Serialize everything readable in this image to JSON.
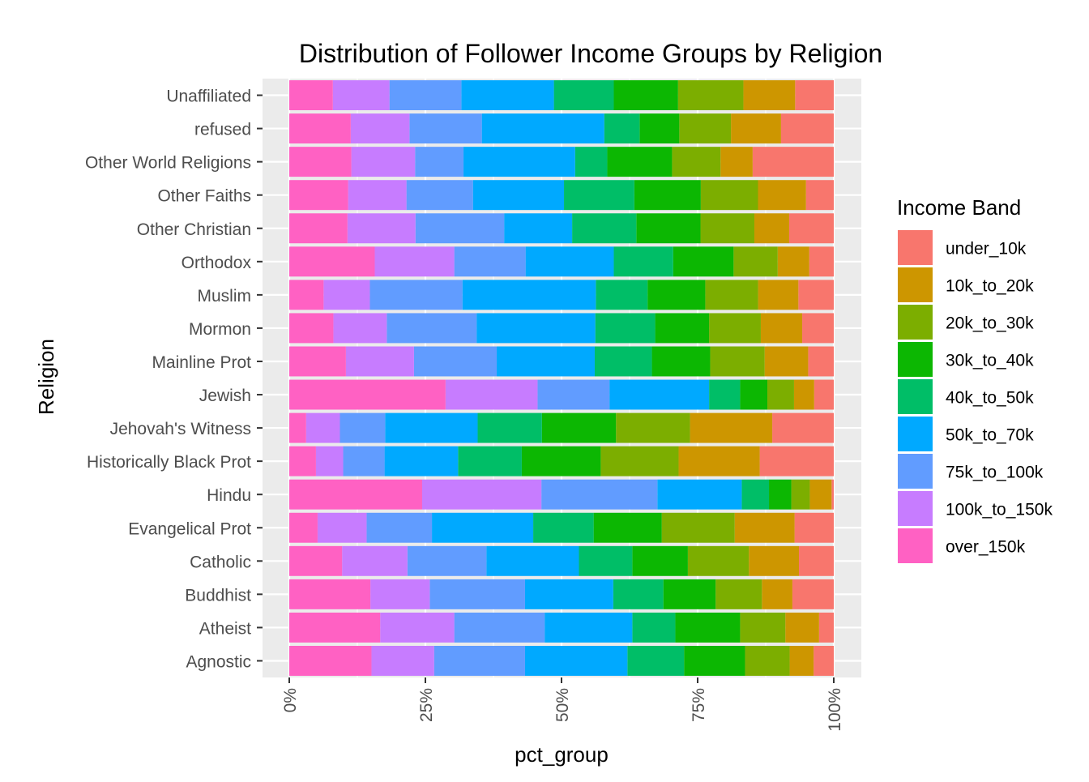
{
  "chart_data": {
    "type": "bar",
    "orientation": "horizontal",
    "stacked": true,
    "normalized": true,
    "title": "Distribution of Follower Income Groups by Religion",
    "xlabel": "pct_group",
    "ylabel": "Religion",
    "xlim": [
      0,
      1
    ],
    "x_ticks": [
      0,
      0.25,
      0.5,
      0.75,
      1.0
    ],
    "x_tick_labels": [
      "0%",
      "25%",
      "50%",
      "75%",
      "100%"
    ],
    "grid": true,
    "legend_position": "right",
    "legend_title": "Income Band",
    "categories": [
      "Agnostic",
      "Atheist",
      "Buddhist",
      "Catholic",
      "Evangelical Prot",
      "Hindu",
      "Historically Black Prot",
      "Jehovah's Witness",
      "Jewish",
      "Mainline Prot",
      "Mormon",
      "Muslim",
      "Orthodox",
      "Other Christian",
      "Other Faiths",
      "Other World Religions",
      "refused",
      "Unaffiliated"
    ],
    "series": [
      {
        "name": "under_10k",
        "color": "#F8766D",
        "values": [
          0.037,
          0.027,
          0.076,
          0.064,
          0.072,
          0.004,
          0.136,
          0.113,
          0.036,
          0.047,
          0.058,
          0.065,
          0.045,
          0.082,
          0.051,
          0.149,
          0.097,
          0.071
        ]
      },
      {
        "name": "10k_to_20k",
        "color": "#CD9600",
        "values": [
          0.044,
          0.062,
          0.056,
          0.092,
          0.11,
          0.04,
          0.149,
          0.151,
          0.037,
          0.08,
          0.076,
          0.074,
          0.058,
          0.064,
          0.088,
          0.059,
          0.092,
          0.095
        ]
      },
      {
        "name": "20k_to_30k",
        "color": "#7CAE00",
        "values": [
          0.082,
          0.083,
          0.085,
          0.112,
          0.134,
          0.034,
          0.143,
          0.136,
          0.049,
          0.1,
          0.095,
          0.097,
          0.081,
          0.099,
          0.105,
          0.089,
          0.095,
          0.12
        ]
      },
      {
        "name": "30k_to_40k",
        "color": "#0CB702",
        "values": [
          0.112,
          0.119,
          0.096,
          0.102,
          0.125,
          0.041,
          0.145,
          0.136,
          0.05,
          0.107,
          0.099,
          0.106,
          0.111,
          0.118,
          0.122,
          0.119,
          0.073,
          0.118
        ]
      },
      {
        "name": "40k_to_50k",
        "color": "#00BE67",
        "values": [
          0.104,
          0.079,
          0.092,
          0.098,
          0.111,
          0.05,
          0.117,
          0.118,
          0.057,
          0.105,
          0.11,
          0.095,
          0.109,
          0.118,
          0.129,
          0.059,
          0.065,
          0.11
        ]
      },
      {
        "name": "50k_to_70k",
        "color": "#00A9FF",
        "values": [
          0.188,
          0.161,
          0.162,
          0.17,
          0.186,
          0.155,
          0.135,
          0.17,
          0.183,
          0.18,
          0.218,
          0.245,
          0.162,
          0.125,
          0.167,
          0.205,
          0.225,
          0.17
        ]
      },
      {
        "name": "75k_to_100k",
        "color": "#619CFF",
        "values": [
          0.167,
          0.166,
          0.175,
          0.145,
          0.12,
          0.213,
          0.076,
          0.083,
          0.132,
          0.152,
          0.165,
          0.17,
          0.131,
          0.163,
          0.122,
          0.089,
          0.133,
          0.132
        ]
      },
      {
        "name": "100k_to_150k",
        "color": "#C77CFF",
        "values": [
          0.115,
          0.136,
          0.109,
          0.12,
          0.09,
          0.219,
          0.05,
          0.062,
          0.169,
          0.125,
          0.098,
          0.085,
          0.146,
          0.125,
          0.107,
          0.117,
          0.108,
          0.104
        ]
      },
      {
        "name": "over_150k",
        "color": "#FF61C3",
        "values": [
          0.151,
          0.167,
          0.149,
          0.097,
          0.052,
          0.244,
          0.049,
          0.031,
          0.287,
          0.104,
          0.081,
          0.063,
          0.157,
          0.107,
          0.108,
          0.114,
          0.113,
          0.08
        ]
      }
    ]
  }
}
